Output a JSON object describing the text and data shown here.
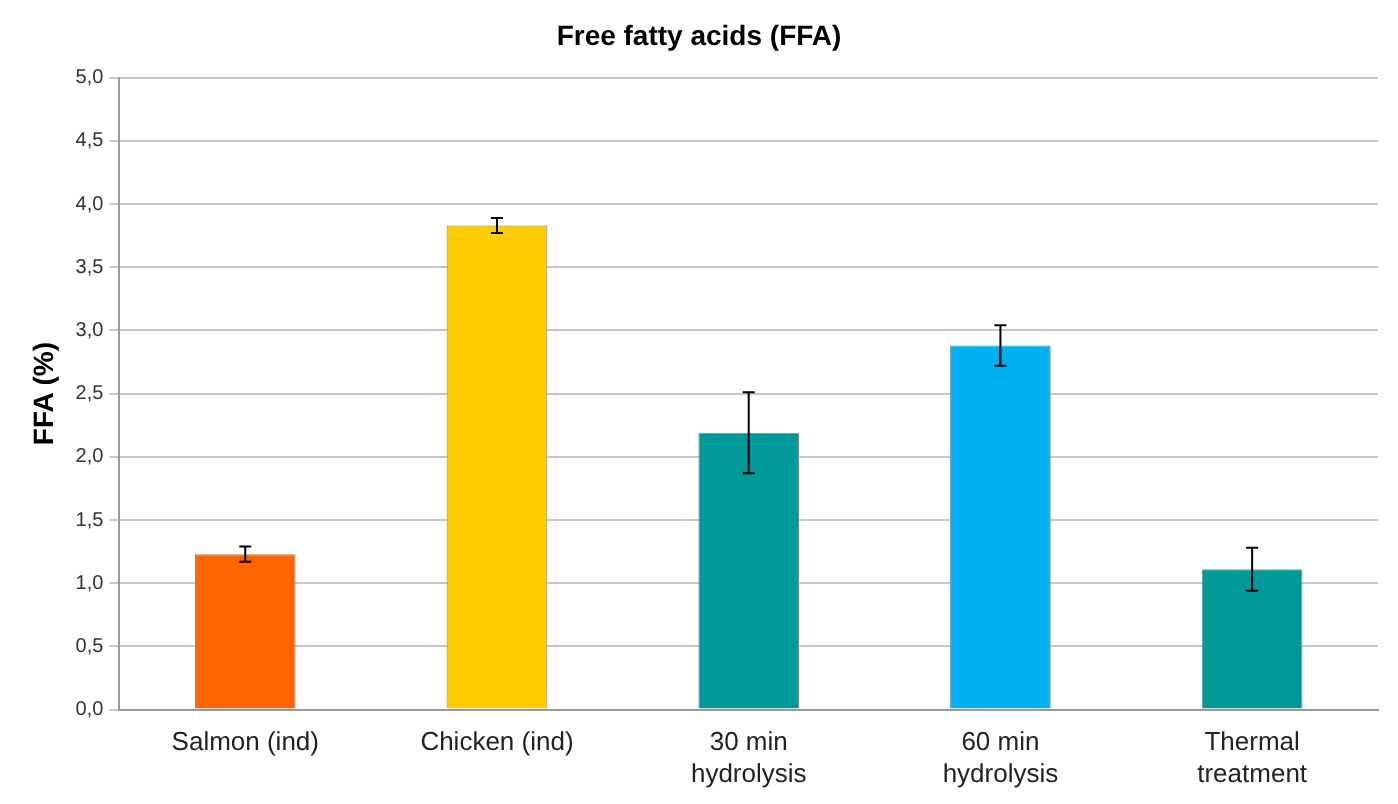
{
  "chart_data": {
    "type": "bar",
    "title": "Free fatty acids (FFA)",
    "ylabel": "FFA (%)",
    "categories": [
      "Salmon (ind)",
      "Chicken (ind)",
      "30 min hydrolysis",
      "60 min hydrolysis",
      "Thermal treatment"
    ],
    "values": [
      1.23,
      3.83,
      2.19,
      2.88,
      1.11
    ],
    "colors": [
      "#ff6600",
      "#ffcc00",
      "#009999",
      "#00b0f0",
      "#009999"
    ],
    "errors": [
      0.06,
      0.06,
      0.32,
      0.16,
      0.17
    ],
    "ylim": [
      0,
      5
    ],
    "yticks": [
      {
        "value": 0,
        "label": "0,0"
      },
      {
        "value": 0.5,
        "label": "0,5"
      },
      {
        "value": 1,
        "label": "1,0"
      },
      {
        "value": 1.5,
        "label": "1,5"
      },
      {
        "value": 2,
        "label": "2,0"
      },
      {
        "value": 2.5,
        "label": "2,5"
      },
      {
        "value": 3,
        "label": "3,0"
      },
      {
        "value": 3.5,
        "label": "3,5"
      },
      {
        "value": 4,
        "label": "4,0"
      },
      {
        "value": 4.5,
        "label": "4,5"
      },
      {
        "value": 5,
        "label": "5,0"
      }
    ],
    "grid": "y",
    "legend": false
  }
}
